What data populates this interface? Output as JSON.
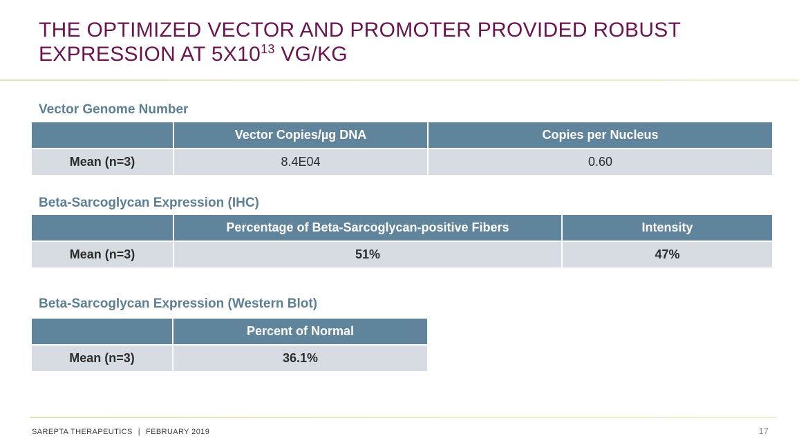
{
  "slide": {
    "title_part1": "THE OPTIMIZED VECTOR AND PROMOTER PROVIDED ROBUST",
    "title_part2": "EXPRESSION AT 5X10",
    "title_sup": "13",
    "title_part3": " VG/KG"
  },
  "tables": [
    {
      "title": "Vector Genome Number",
      "header": [
        "",
        "Vector Copies/µg DNA",
        "Copies per Nucleus"
      ],
      "row": [
        "Mean (n=3)",
        "8.4E04",
        "0.60"
      ]
    },
    {
      "title": "Beta-Sarcoglycan Expression (IHC)",
      "header": [
        "",
        "Percentage of Beta-Sarcoglycan-positive Fibers",
        "Intensity"
      ],
      "row": [
        "Mean (n=3)",
        "51%",
        "47%"
      ]
    },
    {
      "title": "Beta-Sarcoglycan Expression (Western Blot)",
      "header": [
        "",
        "Percent of Normal"
      ],
      "row": [
        "Mean (n=3)",
        "36.1%"
      ]
    }
  ],
  "footer": {
    "company": "SAREPTA THERAPEUTICS",
    "separator": "|",
    "date": "FEBRUARY 2019",
    "page_number": "17"
  }
}
